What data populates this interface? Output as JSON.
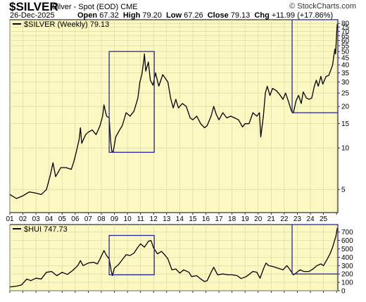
{
  "header": {
    "symbol": "$SILVER",
    "description": "Silver - Spot (EOD)",
    "exchange": "CME",
    "date": "26-Dec-2025",
    "open_label": "Open",
    "open": "67.32",
    "high_label": "High",
    "high": "79.20",
    "low_label": "Low",
    "low": "67.26",
    "close_label": "Close",
    "close": "79.13",
    "chg_label": "Chg",
    "chg": "+11.99 (+17.86%)",
    "brand": "© StockCharts.com"
  },
  "colors": {
    "background": "#fbf8c1",
    "line": "#000000",
    "box": "#2a2aa0",
    "frame": "#000000"
  },
  "chart_data": [
    {
      "type": "line",
      "legend": "$SILVER (Weekly) 79.13",
      "yscale": "log",
      "y_ticks": [
        80,
        75,
        70,
        65,
        60,
        55,
        50,
        45,
        40,
        35,
        30,
        25,
        20,
        15,
        10,
        5
      ],
      "ylim": [
        3.4,
        85
      ],
      "xlim": [
        2001.0,
        2026.1
      ],
      "x_ticks": [
        "01",
        "02",
        "03",
        "04",
        "05",
        "06",
        "07",
        "08",
        "09",
        "10",
        "11",
        "12",
        "13",
        "14",
        "15",
        "16",
        "17",
        "18",
        "19",
        "20",
        "21",
        "22",
        "23",
        "24",
        "25"
      ],
      "series": [
        {
          "values": [
            [
              2001.0,
              4.6
            ],
            [
              2001.5,
              4.3
            ],
            [
              2002.0,
              4.5
            ],
            [
              2002.5,
              4.8
            ],
            [
              2003.0,
              4.7
            ],
            [
              2003.4,
              4.6
            ],
            [
              2003.8,
              5.0
            ],
            [
              2004.1,
              6.4
            ],
            [
              2004.3,
              7.8
            ],
            [
              2004.5,
              6.2
            ],
            [
              2004.9,
              7.2
            ],
            [
              2005.3,
              7.2
            ],
            [
              2005.7,
              7.0
            ],
            [
              2005.9,
              8.0
            ],
            [
              2006.1,
              9.5
            ],
            [
              2006.3,
              11.5
            ],
            [
              2006.4,
              14.0
            ],
            [
              2006.5,
              10.8
            ],
            [
              2006.8,
              12.5
            ],
            [
              2007.0,
              13.0
            ],
            [
              2007.3,
              13.5
            ],
            [
              2007.6,
              12.5
            ],
            [
              2007.9,
              14.5
            ],
            [
              2008.1,
              17.0
            ],
            [
              2008.2,
              20.5
            ],
            [
              2008.4,
              17.0
            ],
            [
              2008.6,
              16.5
            ],
            [
              2008.7,
              11.5
            ],
            [
              2008.8,
              9.5
            ],
            [
              2008.9,
              9.3
            ],
            [
              2009.1,
              12.0
            ],
            [
              2009.4,
              13.5
            ],
            [
              2009.6,
              14.5
            ],
            [
              2009.9,
              18.0
            ],
            [
              2010.2,
              17.0
            ],
            [
              2010.5,
              18.5
            ],
            [
              2010.8,
              23.0
            ],
            [
              2010.95,
              30.0
            ],
            [
              2011.1,
              34.0
            ],
            [
              2011.25,
              43.0
            ],
            [
              2011.3,
              48.0
            ],
            [
              2011.4,
              36.0
            ],
            [
              2011.6,
              42.0
            ],
            [
              2011.75,
              31.0
            ],
            [
              2011.95,
              28.5
            ],
            [
              2012.15,
              35.0
            ],
            [
              2012.4,
              28.0
            ],
            [
              2012.7,
              34.0
            ],
            [
              2012.9,
              32.0
            ],
            [
              2013.1,
              30.0
            ],
            [
              2013.3,
              23.0
            ],
            [
              2013.5,
              19.5
            ],
            [
              2013.7,
              22.5
            ],
            [
              2013.9,
              19.5
            ],
            [
              2014.2,
              21.0
            ],
            [
              2014.5,
              20.0
            ],
            [
              2014.8,
              16.5
            ],
            [
              2015.0,
              16.0
            ],
            [
              2015.3,
              17.0
            ],
            [
              2015.6,
              15.0
            ],
            [
              2015.9,
              14.0
            ],
            [
              2016.1,
              14.5
            ],
            [
              2016.4,
              17.0
            ],
            [
              2016.6,
              20.0
            ],
            [
              2016.8,
              17.5
            ],
            [
              2017.0,
              16.0
            ],
            [
              2017.3,
              18.0
            ],
            [
              2017.6,
              16.5
            ],
            [
              2017.9,
              17.0
            ],
            [
              2018.2,
              16.5
            ],
            [
              2018.5,
              16.0
            ],
            [
              2018.8,
              14.2
            ],
            [
              2019.0,
              15.0
            ],
            [
              2019.3,
              15.0
            ],
            [
              2019.6,
              18.0
            ],
            [
              2019.9,
              17.0
            ],
            [
              2020.1,
              18.0
            ],
            [
              2020.2,
              12.0
            ],
            [
              2020.4,
              17.0
            ],
            [
              2020.55,
              25.0
            ],
            [
              2020.7,
              28.0
            ],
            [
              2020.9,
              24.0
            ],
            [
              2021.1,
              27.0
            ],
            [
              2021.4,
              26.0
            ],
            [
              2021.7,
              24.0
            ],
            [
              2021.9,
              22.5
            ],
            [
              2022.1,
              25.0
            ],
            [
              2022.3,
              22.0
            ],
            [
              2022.55,
              18.5
            ],
            [
              2022.7,
              18.0
            ],
            [
              2022.9,
              22.0
            ],
            [
              2023.1,
              24.0
            ],
            [
              2023.3,
              21.0
            ],
            [
              2023.45,
              25.5
            ],
            [
              2023.7,
              23.0
            ],
            [
              2023.9,
              22.5
            ],
            [
              2024.1,
              23.0
            ],
            [
              2024.3,
              28.0
            ],
            [
              2024.45,
              31.0
            ],
            [
              2024.6,
              28.0
            ],
            [
              2024.8,
              33.0
            ],
            [
              2024.95,
              29.0
            ],
            [
              2025.2,
              33.0
            ],
            [
              2025.4,
              33.5
            ],
            [
              2025.55,
              36.5
            ],
            [
              2025.7,
              40.0
            ],
            [
              2025.8,
              47.0
            ],
            [
              2025.88,
              52.0
            ],
            [
              2025.92,
              48.0
            ],
            [
              2025.98,
              60.0
            ],
            [
              2026.02,
              70.0
            ],
            [
              2026.06,
              79.13
            ]
          ]
        }
      ],
      "boxes": [
        {
          "x": [
            2008.6,
            2012.05
          ],
          "y": [
            9.3,
            50
          ]
        },
        {
          "x": [
            2022.6,
            2026.1
          ],
          "y": [
            18.0,
            85
          ]
        }
      ]
    },
    {
      "type": "line",
      "legend": "$HUI 747.73",
      "yscale": "linear",
      "y_ticks": [
        700,
        600,
        500,
        400,
        300,
        200,
        100,
        0
      ],
      "ylim": [
        0,
        790
      ],
      "xlim": [
        2001.0,
        2026.1
      ],
      "series": [
        {
          "values": [
            [
              2001.0,
              45
            ],
            [
              2001.5,
              55
            ],
            [
              2001.9,
              70
            ],
            [
              2002.3,
              140
            ],
            [
              2002.6,
              120
            ],
            [
              2003.0,
              150
            ],
            [
              2003.4,
              140
            ],
            [
              2003.8,
              220
            ],
            [
              2004.2,
              230
            ],
            [
              2004.6,
              180
            ],
            [
              2005.0,
              220
            ],
            [
              2005.4,
              195
            ],
            [
              2005.8,
              240
            ],
            [
              2006.2,
              300
            ],
            [
              2006.4,
              360
            ],
            [
              2006.6,
              300
            ],
            [
              2007.0,
              330
            ],
            [
              2007.4,
              340
            ],
            [
              2007.7,
              320
            ],
            [
              2007.9,
              380
            ],
            [
              2008.2,
              480
            ],
            [
              2008.4,
              420
            ],
            [
              2008.6,
              380
            ],
            [
              2008.75,
              240
            ],
            [
              2008.85,
              180
            ],
            [
              2009.0,
              270
            ],
            [
              2009.3,
              310
            ],
            [
              2009.6,
              370
            ],
            [
              2009.9,
              430
            ],
            [
              2010.2,
              420
            ],
            [
              2010.5,
              450
            ],
            [
              2010.8,
              520
            ],
            [
              2011.0,
              560
            ],
            [
              2011.3,
              520
            ],
            [
              2011.6,
              590
            ],
            [
              2011.8,
              600
            ],
            [
              2012.0,
              510
            ],
            [
              2012.3,
              440
            ],
            [
              2012.6,
              470
            ],
            [
              2012.9,
              420
            ],
            [
              2013.1,
              380
            ],
            [
              2013.4,
              250
            ],
            [
              2013.7,
              260
            ],
            [
              2014.0,
              210
            ],
            [
              2014.3,
              250
            ],
            [
              2014.7,
              220
            ],
            [
              2014.9,
              170
            ],
            [
              2015.3,
              180
            ],
            [
              2015.6,
              140
            ],
            [
              2015.9,
              110
            ],
            [
              2016.1,
              120
            ],
            [
              2016.4,
              220
            ],
            [
              2016.6,
              280
            ],
            [
              2016.9,
              190
            ],
            [
              2017.3,
              200
            ],
            [
              2017.7,
              190
            ],
            [
              2018.0,
              190
            ],
            [
              2018.4,
              180
            ],
            [
              2018.7,
              145
            ],
            [
              2019.1,
              170
            ],
            [
              2019.6,
              230
            ],
            [
              2019.9,
              220
            ],
            [
              2020.15,
              150
            ],
            [
              2020.4,
              260
            ],
            [
              2020.6,
              330
            ],
            [
              2020.8,
              300
            ],
            [
              2021.1,
              290
            ],
            [
              2021.5,
              270
            ],
            [
              2021.9,
              250
            ],
            [
              2022.2,
              300
            ],
            [
              2022.4,
              260
            ],
            [
              2022.7,
              190
            ],
            [
              2022.9,
              210
            ],
            [
              2023.2,
              250
            ],
            [
              2023.5,
              230
            ],
            [
              2023.9,
              230
            ],
            [
              2024.2,
              260
            ],
            [
              2024.5,
              300
            ],
            [
              2024.8,
              320
            ],
            [
              2025.0,
              300
            ],
            [
              2025.3,
              380
            ],
            [
              2025.5,
              440
            ],
            [
              2025.7,
              520
            ],
            [
              2025.85,
              600
            ],
            [
              2025.95,
              650
            ],
            [
              2026.06,
              747.73
            ]
          ]
        }
      ],
      "boxes": [
        {
          "x": [
            2008.6,
            2012.05
          ],
          "y": [
            190,
            660
          ]
        },
        {
          "x": [
            2022.6,
            2026.1
          ],
          "y": [
            200,
            790
          ]
        }
      ]
    }
  ]
}
